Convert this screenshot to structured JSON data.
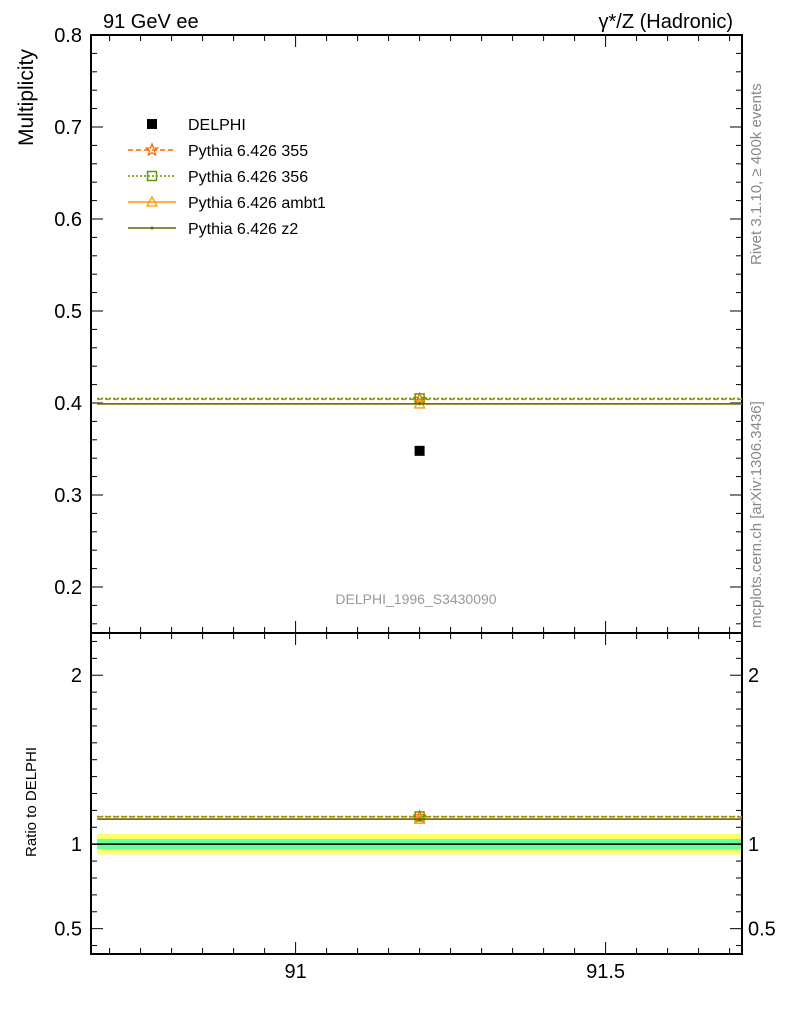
{
  "header": {
    "left": "91 GeV ee",
    "right": "γ*/Z (Hadronic)"
  },
  "side_labels": {
    "rivet": "Rivet 3.1.10, ≥ 400k events",
    "mcplots": "mcplots.cern.ch [arXiv:1306.3436]"
  },
  "watermark": "DELPHI_1996_S3430090",
  "colors": {
    "data": "#000000",
    "p355": "#ff6600",
    "p356": "#669900",
    "ambt1": "#ff9900",
    "z2": "#666600",
    "band_inner": "#66ff99",
    "band_outer": "#ffff66"
  },
  "chart_data": [
    {
      "type": "scatter",
      "panel": "main",
      "ylabel": "Multiplicity",
      "xlim": [
        90.67,
        91.72
      ],
      "ylim": [
        0.15,
        0.8
      ],
      "yticks": [
        "0.2",
        "0.3",
        "0.4",
        "0.5",
        "0.6",
        "0.7",
        "0.8"
      ],
      "series": [
        {
          "name": "DELPHI",
          "x": [
            91.2
          ],
          "y": [
            0.348
          ],
          "marker": "square-filled",
          "style": "points"
        },
        {
          "name": "Pythia 6.426 355",
          "x": [
            91.2
          ],
          "y": [
            0.404
          ],
          "xrange": [
            90.68,
            91.72
          ],
          "marker": "star",
          "style": "dashed"
        },
        {
          "name": "Pythia 6.426 356",
          "x": [
            91.2
          ],
          "y": [
            0.405
          ],
          "xrange": [
            90.68,
            91.72
          ],
          "marker": "square-open",
          "style": "dotted"
        },
        {
          "name": "Pythia 6.426 ambt1",
          "x": [
            91.2
          ],
          "y": [
            0.399
          ],
          "xrange": [
            90.68,
            91.72
          ],
          "marker": "triangle-open",
          "style": "solid"
        },
        {
          "name": "Pythia 6.426 z2",
          "x": [
            91.2
          ],
          "y": [
            0.399
          ],
          "xrange": [
            90.68,
            91.72
          ],
          "marker": "dot",
          "style": "solid"
        }
      ],
      "legend_position": "top-left"
    },
    {
      "type": "scatter",
      "panel": "ratio",
      "ylabel": "Ratio to DELPHI",
      "xlim": [
        90.67,
        91.72
      ],
      "ylim": [
        0.35,
        2.25
      ],
      "yticks": [
        "0.5",
        "1",
        "2"
      ],
      "xticks": [
        "91",
        "91.5"
      ],
      "reference_band": {
        "center": 1.0,
        "inner": [
          0.97,
          1.03
        ],
        "outer": [
          0.94,
          1.06
        ]
      },
      "series": [
        {
          "name": "Pythia 6.426 355",
          "x": [
            91.2
          ],
          "y": [
            1.162
          ]
        },
        {
          "name": "Pythia 6.426 356",
          "x": [
            91.2
          ],
          "y": [
            1.164
          ]
        },
        {
          "name": "Pythia 6.426 ambt1",
          "x": [
            91.2
          ],
          "y": [
            1.148
          ]
        },
        {
          "name": "Pythia 6.426 z2",
          "x": [
            91.2
          ],
          "y": [
            1.148
          ]
        }
      ]
    }
  ]
}
